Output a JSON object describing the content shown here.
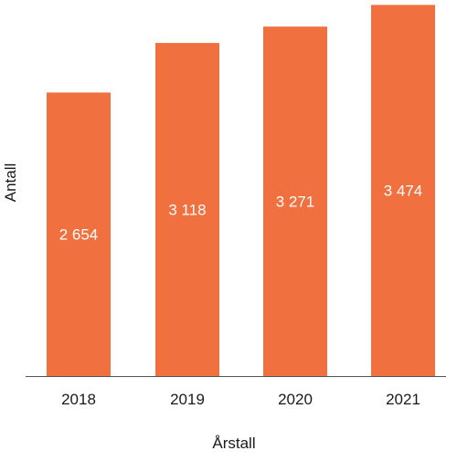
{
  "chart_data": {
    "type": "bar",
    "categories": [
      "2018",
      "2019",
      "2020",
      "2021"
    ],
    "values": [
      2654,
      3118,
      3271,
      3474
    ],
    "value_labels": [
      "2 654",
      "3 118",
      "3 271",
      "3 474"
    ],
    "xlabel": "Årstall",
    "ylabel": "Antall",
    "ylim": [
      0,
      3520
    ],
    "grid": false,
    "bar_color": "#f07040"
  }
}
